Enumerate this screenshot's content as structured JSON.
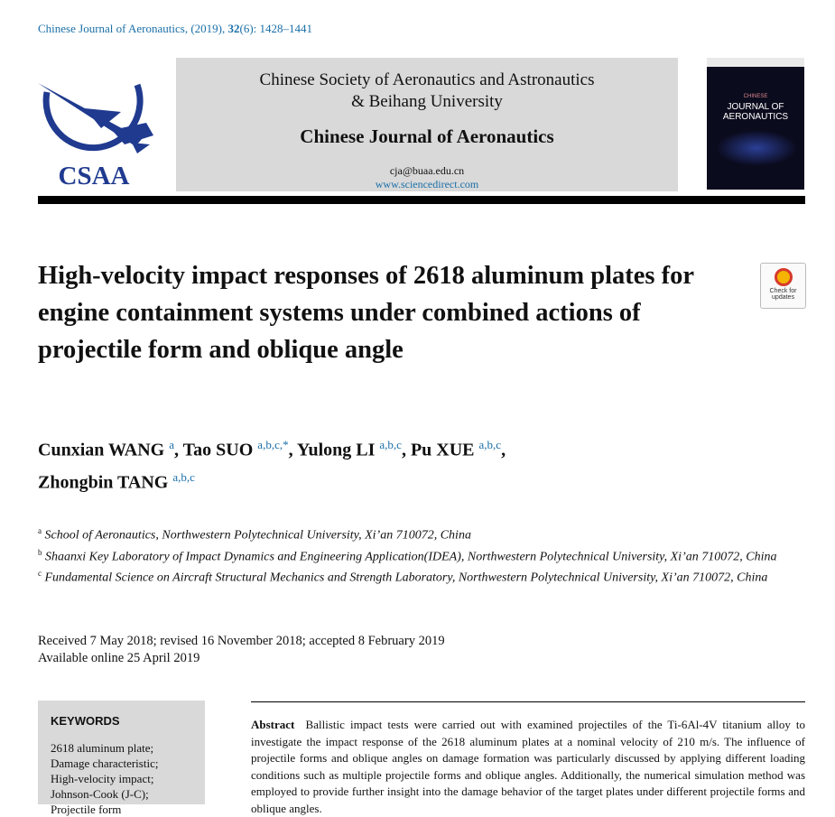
{
  "citation": {
    "prefix": "Chinese Journal of Aeronautics, (2019), ",
    "volume": "32",
    "suffix": "(6): 1428–1441"
  },
  "masthead": {
    "logo_text": "CSAA",
    "society_line1": "Chinese Society of Aeronautics and Astronautics",
    "society_line2": "& Beihang University",
    "journal": "Chinese Journal of Aeronautics",
    "email": "cja@buaa.edu.cn",
    "website": "www.sciencedirect.com",
    "cover_title_small": "CHINESE",
    "cover_title": "JOURNAL OF AERONAUTICS"
  },
  "title": "High-velocity impact responses of 2618 aluminum plates for engine containment systems under combined actions of projectile form and oblique angle",
  "badge": {
    "text": "Check for updates"
  },
  "authors": [
    {
      "name": "Cunxian WANG",
      "sup": "a",
      "sep": ", "
    },
    {
      "name": "Tao SUO",
      "sup": "a,b,c,*",
      "sep": ", "
    },
    {
      "name": "Yulong LI",
      "sup": "a,b,c",
      "sep": ", "
    },
    {
      "name": "Pu XUE",
      "sup": "a,b,c",
      "sep": ","
    },
    {
      "name": "Zhongbin TANG",
      "sup": "a,b,c",
      "sep": ""
    }
  ],
  "affiliations": [
    {
      "sup": "a",
      "text": "School of Aeronautics, Northwestern Polytechnical University, Xi’an 710072, China"
    },
    {
      "sup": "b",
      "text": "Shaanxi Key Laboratory of Impact Dynamics and Engineering Application(IDEA), Northwestern Polytechnical University, Xi’an 710072, China"
    },
    {
      "sup": "c",
      "text": "Fundamental Science on Aircraft Structural Mechanics and Strength Laboratory, Northwestern Polytechnical University, Xi’an 710072, China"
    }
  ],
  "dates": {
    "received": "Received 7 May 2018; revised 16 November 2018; accepted 8 February 2019",
    "online": "Available online 25 April 2019"
  },
  "keywords": {
    "heading": "KEYWORDS",
    "items": [
      "2618 aluminum plate;",
      "Damage characteristic;",
      "High-velocity impact;",
      "Johnson-Cook (J-C);",
      "Projectile form"
    ]
  },
  "abstract": {
    "label": "Abstract",
    "text": "Ballistic impact tests were carried out with examined projectiles of the Ti-6Al-4V titanium alloy to investigate the impact response of the 2618 aluminum plates at a nominal velocity of 210 m/s. The influence of projectile forms and oblique angles on damage formation was particularly discussed by applying different loading conditions such as multiple projectile forms and oblique angles. Additionally, the numerical simulation method was employed to provide further insight into the damage behavior of the target plates under different projectile forms and oblique angles."
  }
}
